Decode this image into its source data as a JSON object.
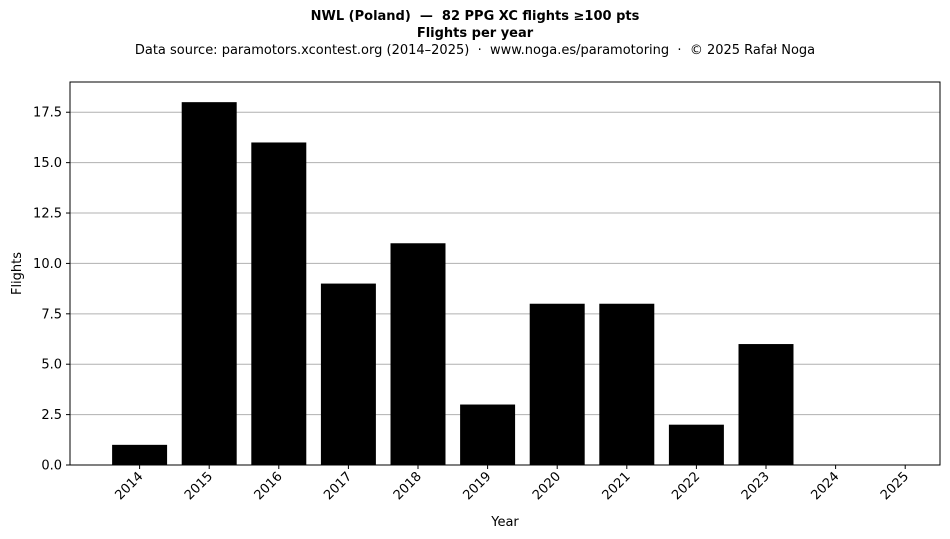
{
  "chart_data": {
    "type": "bar",
    "title": "NWL (Poland)  —  82 PPG XC flights ≥100 pts",
    "subtitle": "Flights per year",
    "source_note": "Data source: paramotors.xcontest.org (2014–2025)  ·  www.noga.es/paramotoring  ·  © 2025 Rafał Noga",
    "xlabel": "Year",
    "ylabel": "Flights",
    "categories": [
      "2014",
      "2015",
      "2016",
      "2017",
      "2018",
      "2019",
      "2020",
      "2021",
      "2022",
      "2023",
      "2024",
      "2025"
    ],
    "values": [
      1,
      18,
      16,
      9,
      11,
      3,
      8,
      8,
      2,
      6,
      0,
      0
    ],
    "ylim": [
      0,
      19
    ],
    "yticks": [
      0,
      2.5,
      5,
      7.5,
      10,
      12.5,
      15,
      17.5
    ],
    "ytick_labels": [
      "0.0",
      "2.5",
      "5.0",
      "7.5",
      "10.0",
      "12.5",
      "15.0",
      "17.5"
    ],
    "grid": "y-major",
    "bar_color": "#000000",
    "grid_color": "#b0b0b0"
  }
}
